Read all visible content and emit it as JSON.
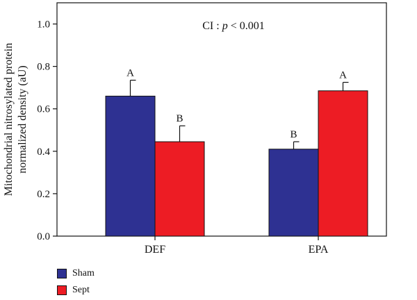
{
  "chart_data": {
    "type": "bar",
    "annotation": {
      "prefix": "CI : ",
      "p": "p",
      "rest": " < 0.001"
    },
    "ylabel_lines": [
      "Mitochondrial nitrosylated protein",
      "normalized density (aU)"
    ],
    "xlabel": "",
    "ylim": [
      0.0,
      1.1
    ],
    "yticks": [
      0.0,
      0.2,
      0.4,
      0.6,
      0.8,
      1.0
    ],
    "ytick_labels": [
      "0.0",
      "0.2",
      "0.4",
      "0.6",
      "0.8",
      "1.0"
    ],
    "categories": [
      "DEF",
      "EPA"
    ],
    "series": [
      {
        "name": "Sham",
        "color": "#2e3192",
        "values": [
          0.66,
          0.41
        ],
        "errors": [
          0.075,
          0.035
        ],
        "labels": [
          "A",
          "B"
        ]
      },
      {
        "name": "Sept",
        "color": "#ed1c24",
        "values": [
          0.445,
          0.685
        ],
        "errors": [
          0.075,
          0.04
        ],
        "labels": [
          "B",
          "A"
        ]
      }
    ],
    "grid": false,
    "legend_position": "bottom-left"
  }
}
